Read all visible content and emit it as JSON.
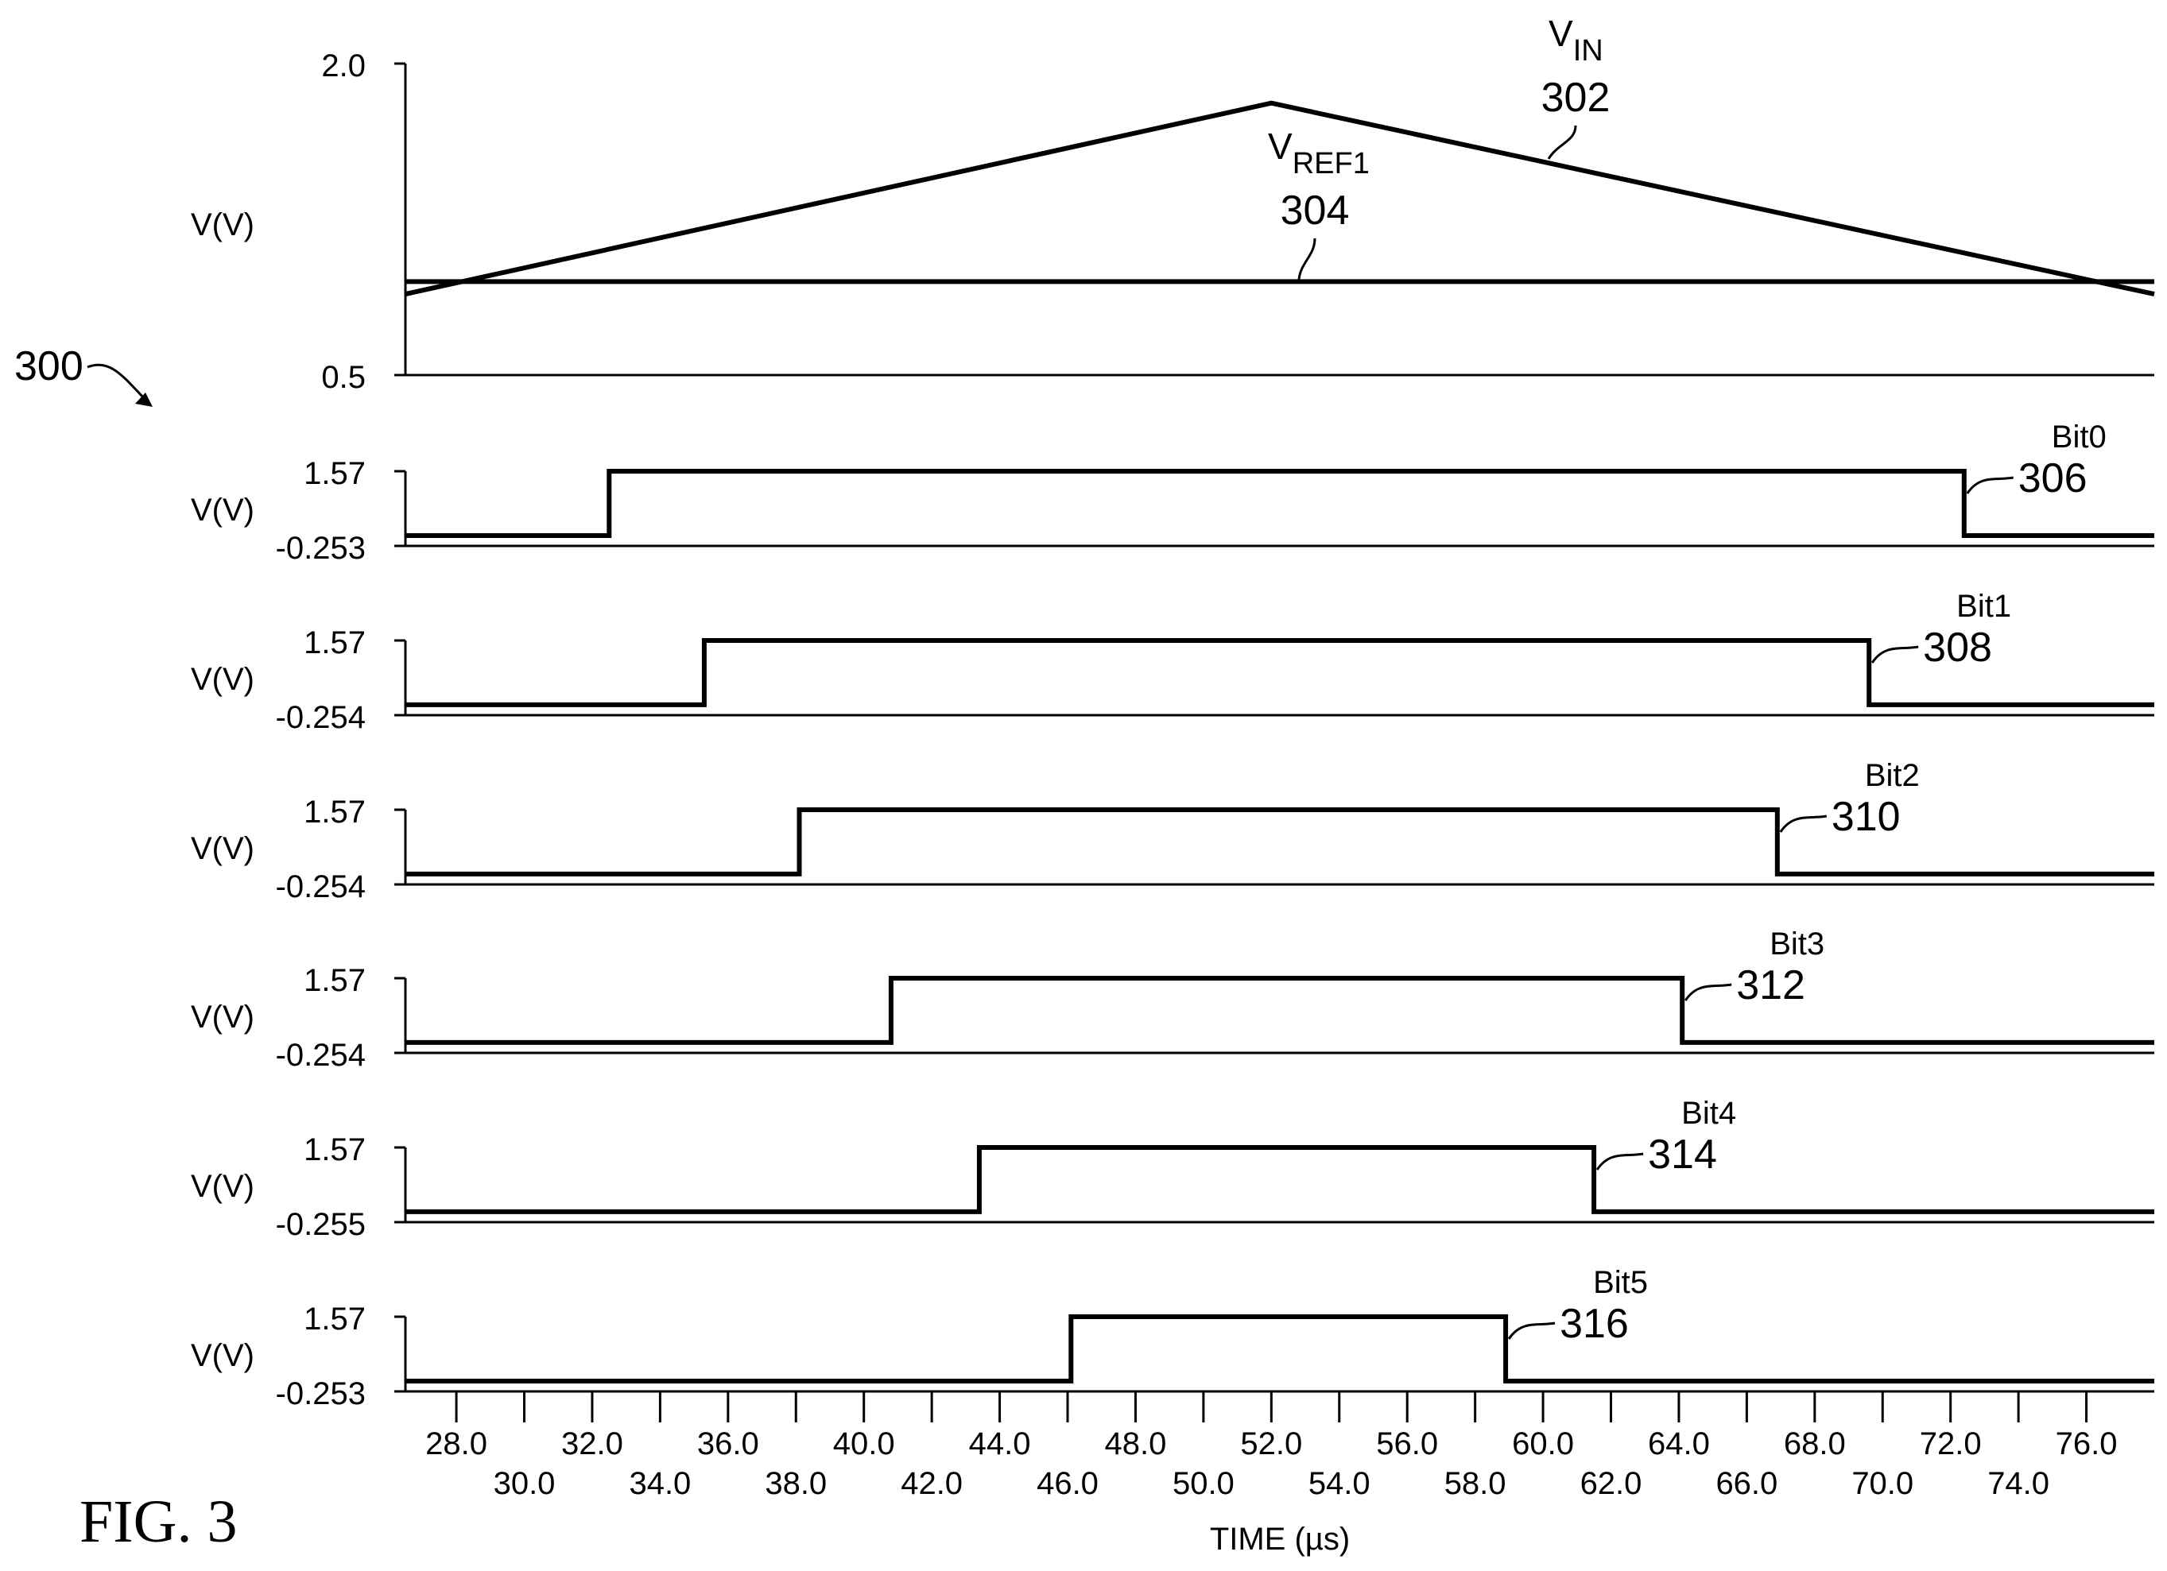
{
  "figure": {
    "label": "FIG. 3",
    "ref": "300"
  },
  "chart_data": [
    {
      "type": "line",
      "ylabel": "V(V)",
      "ylim": [
        0.5,
        2.0
      ],
      "yticks": [
        "2.0",
        "0.5"
      ],
      "series": [
        {
          "name": "V",
          "name_sub": "IN",
          "ref": "302",
          "x": [
            26.5,
            52.0,
            78.0
          ],
          "y": [
            0.89,
            1.81,
            0.89
          ]
        },
        {
          "name": "V",
          "name_sub": "REF1",
          "ref": "304",
          "x": [
            26.5,
            78.0
          ],
          "y": [
            0.95,
            0.95
          ]
        }
      ]
    },
    {
      "type": "line",
      "ylabel": "V(V)",
      "ylim": [
        -0.253,
        1.57
      ],
      "yticks": [
        "1.57",
        "-0.253"
      ],
      "series": [
        {
          "name": "Bit0",
          "ref": "306",
          "high": [
            32.5,
            72.4
          ],
          "low_value": 0.0,
          "high_value": 1.57
        }
      ]
    },
    {
      "type": "line",
      "ylabel": "V(V)",
      "ylim": [
        -0.254,
        1.57
      ],
      "yticks": [
        "1.57",
        "-0.254"
      ],
      "series": [
        {
          "name": "Bit1",
          "ref": "308",
          "high": [
            35.3,
            69.6
          ],
          "low_value": 0.0,
          "high_value": 1.57
        }
      ]
    },
    {
      "type": "line",
      "ylabel": "V(V)",
      "ylim": [
        -0.254,
        1.57
      ],
      "yticks": [
        "1.57",
        "-0.254"
      ],
      "series": [
        {
          "name": "Bit2",
          "ref": "310",
          "high": [
            38.1,
            66.9
          ],
          "low_value": 0.0,
          "high_value": 1.57
        }
      ]
    },
    {
      "type": "line",
      "ylabel": "V(V)",
      "ylim": [
        -0.254,
        1.57
      ],
      "yticks": [
        "1.57",
        "-0.254"
      ],
      "series": [
        {
          "name": "Bit3",
          "ref": "312",
          "high": [
            40.8,
            64.1
          ],
          "low_value": 0.0,
          "high_value": 1.57
        }
      ]
    },
    {
      "type": "line",
      "ylabel": "V(V)",
      "ylim": [
        -0.255,
        1.57
      ],
      "yticks": [
        "1.57",
        "-0.255"
      ],
      "series": [
        {
          "name": "Bit4",
          "ref": "314",
          "high": [
            43.4,
            61.5
          ],
          "low_value": 0.0,
          "high_value": 1.57
        }
      ]
    },
    {
      "type": "line",
      "ylabel": "V(V)",
      "ylim": [
        -0.253,
        1.57
      ],
      "yticks": [
        "1.57",
        "-0.253"
      ],
      "series": [
        {
          "name": "Bit5",
          "ref": "316",
          "high": [
            46.1,
            58.9
          ],
          "low_value": 0.0,
          "high_value": 1.57
        }
      ]
    }
  ],
  "x_axis": {
    "label": "TIME (µs)",
    "xlim": [
      26.5,
      78.0
    ],
    "ticks_upper": [
      "28.0",
      "32.0",
      "36.0",
      "40.0",
      "44.0",
      "48.0",
      "52.0",
      "56.0",
      "60.0",
      "64.0",
      "68.0",
      "72.0",
      "76.0"
    ],
    "ticks_lower": [
      "30.0",
      "34.0",
      "38.0",
      "42.0",
      "46.0",
      "50.0",
      "54.0",
      "58.0",
      "62.0",
      "66.0",
      "70.0",
      "74.0"
    ]
  }
}
